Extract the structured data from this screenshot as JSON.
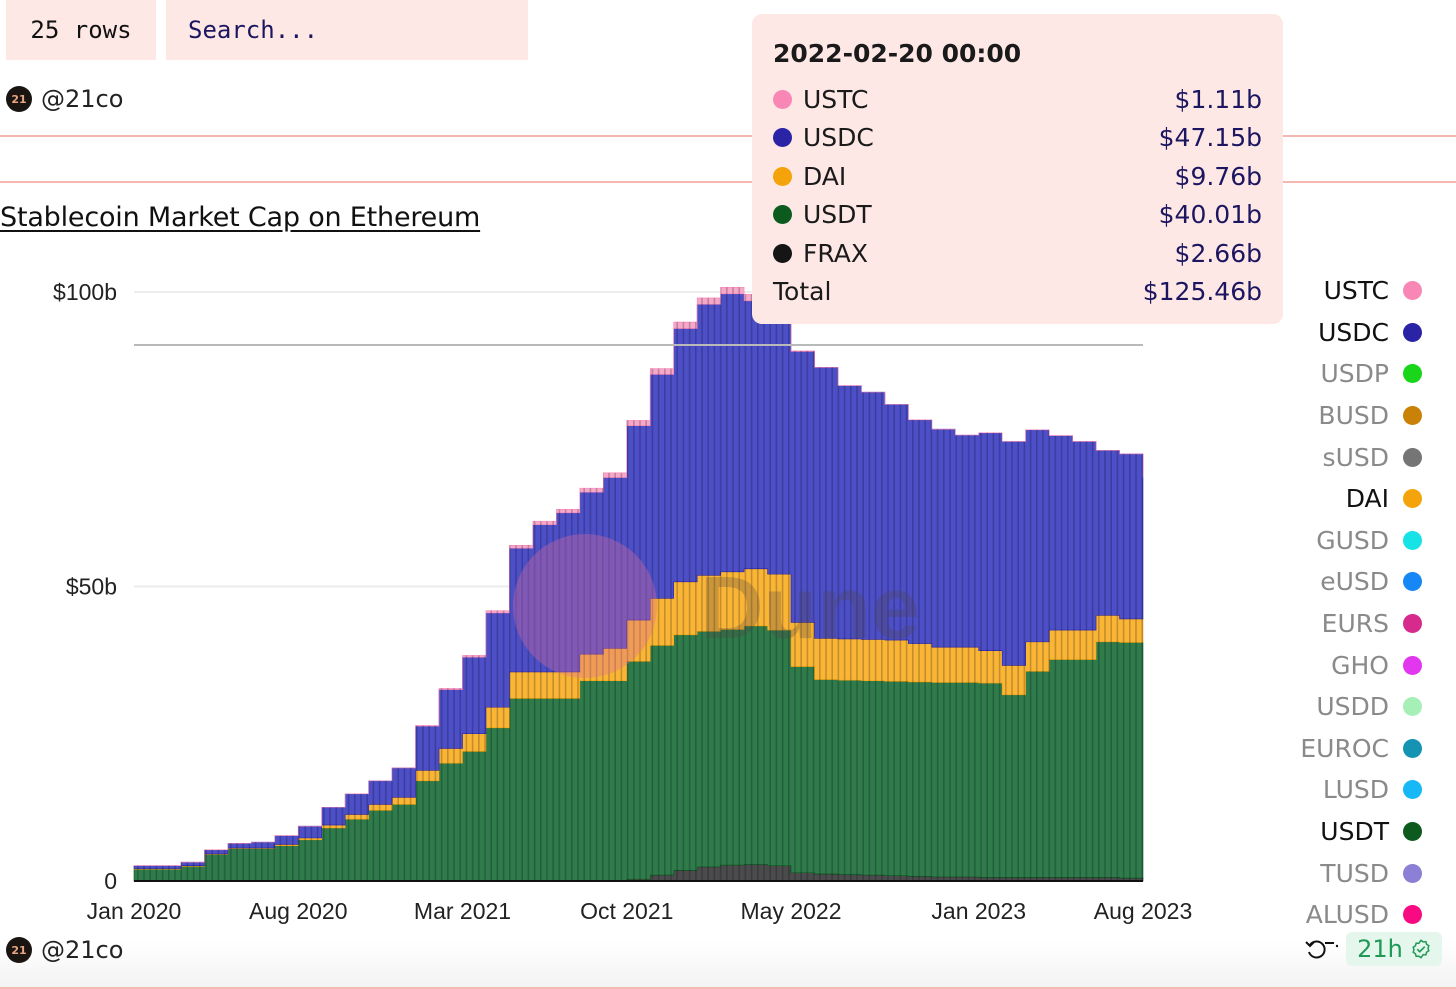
{
  "toolbar": {
    "rows_label": "25 rows",
    "search_placeholder": "Search..."
  },
  "author": {
    "handle": "@21co",
    "avatar_text": "21"
  },
  "footer": {
    "author_handle": "@21co",
    "freshness": "21h",
    "refresh_icon": "refresh-icon",
    "verified_icon": "verified-check-icon"
  },
  "tooltip": {
    "title": "2022-02-20 00:00",
    "rows": [
      {
        "name": "USTC",
        "value": "$1.11b",
        "color": "#f987b6"
      },
      {
        "name": "USDC",
        "value": "$47.15b",
        "color": "#2a23a6"
      },
      {
        "name": "DAI",
        "value": "$9.76b",
        "color": "#f5a30a"
      },
      {
        "name": "USDT",
        "value": "$40.01b",
        "color": "#0c5a1e"
      },
      {
        "name": "FRAX",
        "value": "$2.66b",
        "color": "#151515"
      }
    ],
    "total_label": "Total",
    "total_value": "$125.46b"
  },
  "legend": [
    {
      "name": "USTC",
      "color": "#f987b6",
      "active": true
    },
    {
      "name": "USDC",
      "color": "#2a23a6",
      "active": true
    },
    {
      "name": "USDP",
      "color": "#19d61b",
      "active": false
    },
    {
      "name": "BUSD",
      "color": "#c98107",
      "active": false
    },
    {
      "name": "sUSD",
      "color": "#757575",
      "active": false
    },
    {
      "name": "DAI",
      "color": "#f5a30a",
      "active": true
    },
    {
      "name": "GUSD",
      "color": "#17e3e6",
      "active": false
    },
    {
      "name": "eUSD",
      "color": "#1687f5",
      "active": false
    },
    {
      "name": "EURS",
      "color": "#d62a8c",
      "active": false
    },
    {
      "name": "GHO",
      "color": "#e237ef",
      "active": false
    },
    {
      "name": "USDD",
      "color": "#a6efb6",
      "active": false
    },
    {
      "name": "EUROC",
      "color": "#1494b2",
      "active": false
    },
    {
      "name": "LUSD",
      "color": "#16b8f5",
      "active": false
    },
    {
      "name": "USDT",
      "color": "#0c5a1e",
      "active": true
    },
    {
      "name": "TUSD",
      "color": "#8c7fd6",
      "active": false
    },
    {
      "name": "ALUSD",
      "color": "#f70a82",
      "active": false
    }
  ],
  "chart_data": {
    "type": "area",
    "stacked": true,
    "title": "Stablecoin Market Cap on Ethereum",
    "xlabel": "",
    "ylabel": "",
    "ylim": [
      0,
      100
    ],
    "y_ticks": [
      {
        "value": 0,
        "label": "0"
      },
      {
        "value": 50,
        "label": "$50b"
      },
      {
        "value": 100,
        "label": "$100b"
      }
    ],
    "reference_line": 91,
    "x_ticks": [
      "Jan 2020",
      "Aug 2020",
      "Mar 2021",
      "Oct 2021",
      "May 2022",
      "Jan 2023",
      "Aug 2023"
    ],
    "x_tick_months": [
      0,
      7,
      14,
      21,
      28,
      36,
      43
    ],
    "x": [
      "2020-01",
      "2020-02",
      "2020-03",
      "2020-04",
      "2020-05",
      "2020-06",
      "2020-07",
      "2020-08",
      "2020-09",
      "2020-10",
      "2020-11",
      "2020-12",
      "2021-01",
      "2021-02",
      "2021-03",
      "2021-04",
      "2021-05",
      "2021-06",
      "2021-07",
      "2021-08",
      "2021-09",
      "2021-10",
      "2021-11",
      "2021-12",
      "2022-01",
      "2022-02",
      "2022-03",
      "2022-04",
      "2022-05",
      "2022-06",
      "2022-07",
      "2022-08",
      "2022-09",
      "2022-10",
      "2022-11",
      "2022-12",
      "2023-01",
      "2023-02",
      "2023-03",
      "2023-04",
      "2023-05",
      "2023-06",
      "2023-07",
      "2023-08"
    ],
    "watermark": "Dune",
    "series": [
      {
        "name": "FRAX",
        "color": "#151515",
        "values": [
          0,
          0,
          0,
          0,
          0,
          0,
          0,
          0,
          0,
          0,
          0,
          0,
          0,
          0,
          0,
          0,
          0,
          0,
          0,
          0,
          0,
          0.3,
          1.0,
          1.8,
          2.4,
          2.7,
          2.8,
          2.6,
          1.4,
          1.2,
          1.1,
          1.0,
          0.9,
          0.8,
          0.7,
          0.7,
          0.6,
          0.6,
          0.6,
          0.6,
          0.6,
          0.6,
          0.5,
          0.5
        ]
      },
      {
        "name": "USDT",
        "color": "#0c5a1e",
        "values": [
          2.0,
          2.0,
          2.5,
          4.5,
          5.5,
          5.5,
          6.0,
          7.0,
          9.0,
          10.5,
          12.0,
          13.0,
          17.0,
          20.0,
          22.0,
          26.0,
          31.0,
          31.0,
          31.0,
          34.0,
          34.0,
          37.0,
          39.0,
          40.0,
          40.0,
          40.0,
          40.5,
          40.0,
          35.0,
          33.0,
          33.0,
          33.0,
          33.0,
          33.0,
          33.0,
          33.0,
          33.0,
          31.0,
          35.0,
          37.0,
          37.0,
          40.0,
          40.0,
          40.0
        ]
      },
      {
        "name": "DAI",
        "color": "#f5a30a",
        "values": [
          0.1,
          0.1,
          0.1,
          0.1,
          0.1,
          0.1,
          0.2,
          0.3,
          0.5,
          0.8,
          1.0,
          1.2,
          1.8,
          2.5,
          3.0,
          3.5,
          4.5,
          4.5,
          4.5,
          4.5,
          5.5,
          7.0,
          8.0,
          9.0,
          9.5,
          9.8,
          9.7,
          9.5,
          7.5,
          7.0,
          7.0,
          7.0,
          7.0,
          6.5,
          6.0,
          6.0,
          5.5,
          5.0,
          5.0,
          5.0,
          5.0,
          4.5,
          4.0,
          4.0
        ]
      },
      {
        "name": "USDC",
        "color": "#2a23a6",
        "values": [
          0.5,
          0.5,
          0.6,
          0.7,
          0.8,
          1.0,
          1.5,
          2.0,
          3.0,
          3.5,
          4.0,
          5.0,
          7.5,
          10.0,
          13.0,
          16.0,
          21.0,
          25.0,
          27.0,
          27.5,
          29.0,
          33.0,
          38.0,
          43.0,
          46.0,
          47.2,
          45.5,
          46.0,
          46.0,
          46.0,
          43.0,
          42.0,
          40.0,
          38.0,
          37.0,
          36.0,
          37.0,
          38.0,
          36.0,
          33.0,
          32.0,
          28.0,
          28.0,
          24.0
        ]
      },
      {
        "name": "USTC",
        "color": "#f987b6",
        "values": [
          0,
          0,
          0,
          0,
          0,
          0,
          0,
          0,
          0,
          0,
          0,
          0,
          0.1,
          0.2,
          0.3,
          0.4,
          0.5,
          0.6,
          0.6,
          0.7,
          0.8,
          0.9,
          1.0,
          1.1,
          1.1,
          1.1,
          1.1,
          1.0,
          0.1,
          0,
          0,
          0,
          0,
          0,
          0,
          0,
          0,
          0,
          0,
          0,
          0,
          0,
          0,
          0
        ]
      }
    ]
  }
}
